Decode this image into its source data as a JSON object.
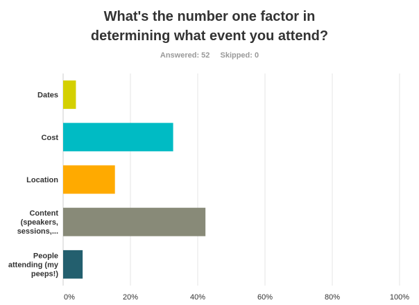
{
  "chart_data": {
    "type": "bar",
    "orientation": "horizontal",
    "title_lines": [
      "What's the number one factor in",
      "determining what event you attend?"
    ],
    "answered": "Answered: 52",
    "skipped": "Skipped: 0",
    "categories": [
      [
        "Dates"
      ],
      [
        "Cost"
      ],
      [
        "Location"
      ],
      [
        "Content",
        "(speakers,",
        "sessions,..."
      ],
      [
        "People",
        "attending (my",
        "peeps!)"
      ]
    ],
    "values": [
      3.8,
      32.7,
      15.4,
      42.3,
      5.8
    ],
    "colors": [
      "#d4d000",
      "#00bbc4",
      "#ffaa00",
      "#888a78",
      "#235f6e"
    ],
    "xlim": [
      0,
      100
    ],
    "xticks": [
      0,
      20,
      40,
      60,
      80,
      100
    ],
    "xtick_labels": [
      "0%",
      "20%",
      "40%",
      "60%",
      "80%",
      "100%"
    ],
    "grid": true,
    "legend": "none"
  }
}
